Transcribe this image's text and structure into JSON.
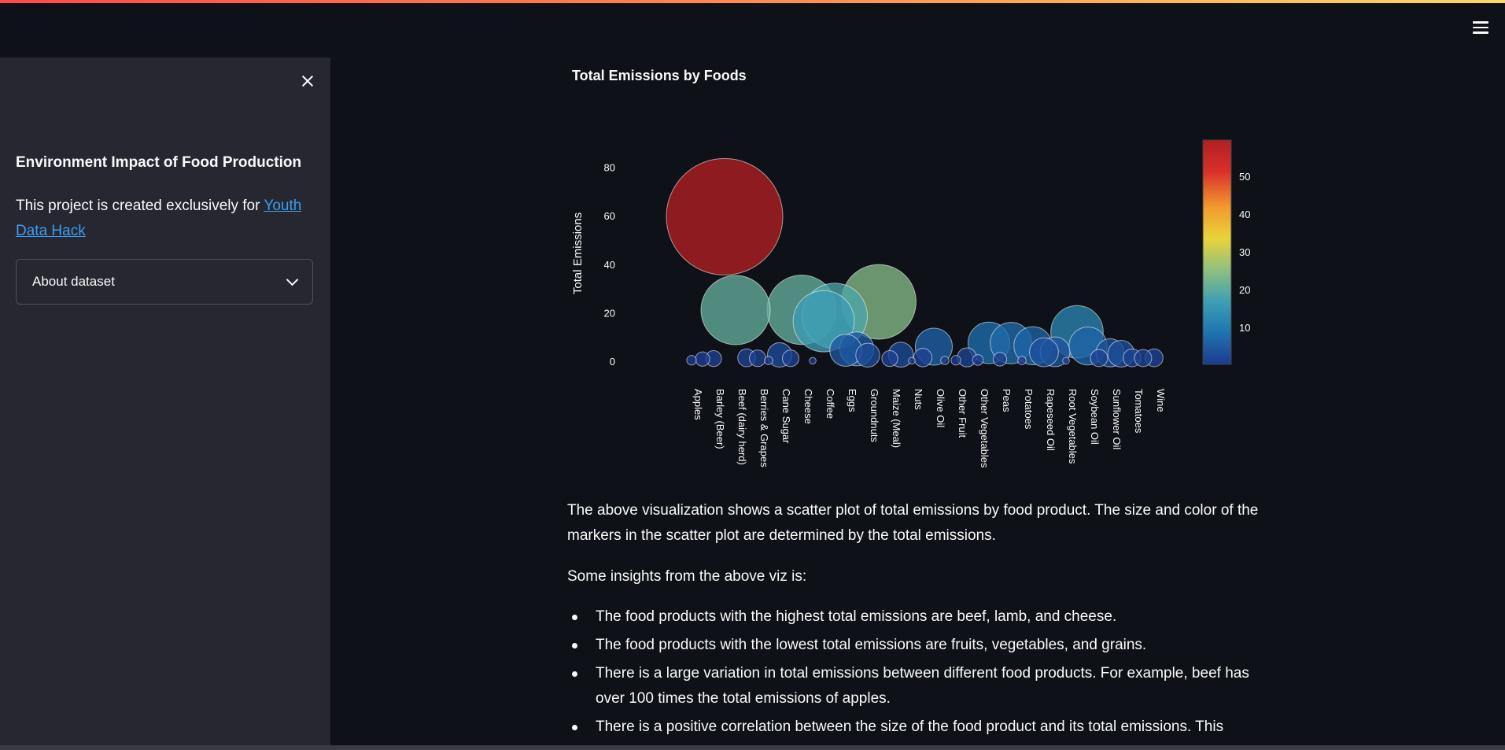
{
  "sidebar": {
    "title": "Environment Impact of Food Production",
    "text_prefix": "This project is created exclusively for ",
    "link_text": "Youth Data Hack",
    "expander_label": "About dataset"
  },
  "main": {
    "chart_title": "Total Emissions by Foods",
    "description": "The above visualization shows a scatter plot of total emissions by food product. The size and color of the markers in the scatter plot are determined by the total emissions.",
    "insights_heading": "Some insights from the above viz is:",
    "insights": [
      "The food products with the highest total emissions are beef, lamb, and cheese.",
      "The food products with the lowest total emissions are fruits, vegetables, and grains.",
      "There is a large variation in total emissions between different food products. For example, beef has over 100 times the total emissions of apples.",
      "There is a positive correlation between the size of the food product and its total emissions. This"
    ]
  },
  "icons": {
    "menu": "hamburger-menu-icon",
    "close": "close-icon",
    "expander": "chevron-down-icon"
  },
  "colors": {
    "background": "#0e1117",
    "sidebar": "#262730",
    "link": "#3d9df3"
  },
  "chart_data": {
    "type": "scatter",
    "title": "Total Emissions by Foods",
    "ylabel": "Total Emissions",
    "xlabel": "",
    "ylim": [
      -2,
      88
    ],
    "yticks": [
      0,
      20,
      40,
      60,
      80
    ],
    "x_tick_labels": [
      "Apples",
      "Barley (Beer)",
      "Beef (dairy herd)",
      "Berries & Grapes",
      "Cane Sugar",
      "Cheese",
      "Coffee",
      "Eggs",
      "Groundnuts",
      "Maize (Meal)",
      "Nuts",
      "Olive Oil",
      "Other Fruit",
      "Other Vegetables",
      "Peas",
      "Potatoes",
      "Rapeseed Oil",
      "Root Vegetables",
      "Soybean Oil",
      "Sunflower Oil",
      "Tomatoes",
      "Wine"
    ],
    "colorbar": {
      "min": 0.2,
      "max": 59.6,
      "ticks": [
        10,
        20,
        30,
        40,
        50
      ],
      "colorscale": [
        "#1d3a8f",
        "#1f74b0",
        "#3f9fb5",
        "#8fbf80",
        "#e8d43a",
        "#f29a2e",
        "#d8302a",
        "#b11f22"
      ]
    },
    "points": [
      {
        "slot": 0,
        "y": 0.4
      },
      {
        "slot": 0.5,
        "y": 0.9
      },
      {
        "slot": 1,
        "y": 1.1
      },
      {
        "slot": 1.5,
        "y": 59.6
      },
      {
        "slot": 2,
        "y": 21.1
      },
      {
        "slot": 2.5,
        "y": 1.4
      },
      {
        "slot": 3,
        "y": 1.2
      },
      {
        "slot": 3.5,
        "y": 0.3
      },
      {
        "slot": 4,
        "y": 2.6
      },
      {
        "slot": 4.5,
        "y": 1.2
      },
      {
        "slot": 5,
        "y": 21.2
      },
      {
        "slot": 5.5,
        "y": 0.2
      },
      {
        "slot": 6,
        "y": 16.5
      },
      {
        "slot": 6.5,
        "y": 18.7
      },
      {
        "slot": 7,
        "y": 4.5
      },
      {
        "slot": 7.5,
        "y": 5.1
      },
      {
        "slot": 8,
        "y": 2.5
      },
      {
        "slot": 8.5,
        "y": 24.5
      },
      {
        "slot": 9,
        "y": 1.1
      },
      {
        "slot": 9.5,
        "y": 2.7
      },
      {
        "slot": 10,
        "y": 0.2
      },
      {
        "slot": 10.5,
        "y": 1.5
      },
      {
        "slot": 11,
        "y": 6.0
      },
      {
        "slot": 11.5,
        "y": 0.3
      },
      {
        "slot": 12,
        "y": 0.4
      },
      {
        "slot": 12.5,
        "y": 1.6
      },
      {
        "slot": 13,
        "y": 0.5
      },
      {
        "slot": 13.5,
        "y": 7.6
      },
      {
        "slot": 14,
        "y": 0.8
      },
      {
        "slot": 14.5,
        "y": 7.5
      },
      {
        "slot": 15,
        "y": 0.3
      },
      {
        "slot": 15.5,
        "y": 6.4
      },
      {
        "slot": 16,
        "y": 3.7
      },
      {
        "slot": 16.5,
        "y": 3.9
      },
      {
        "slot": 17,
        "y": 0.2
      },
      {
        "slot": 17.5,
        "y": 12.1
      },
      {
        "slot": 18,
        "y": 6.3
      },
      {
        "slot": 18.5,
        "y": 1.3
      },
      {
        "slot": 19,
        "y": 3.5
      },
      {
        "slot": 19.5,
        "y": 3.1
      },
      {
        "slot": 20,
        "y": 1.4
      },
      {
        "slot": 20.5,
        "y": 1.3
      },
      {
        "slot": 21,
        "y": 1.4
      }
    ]
  }
}
